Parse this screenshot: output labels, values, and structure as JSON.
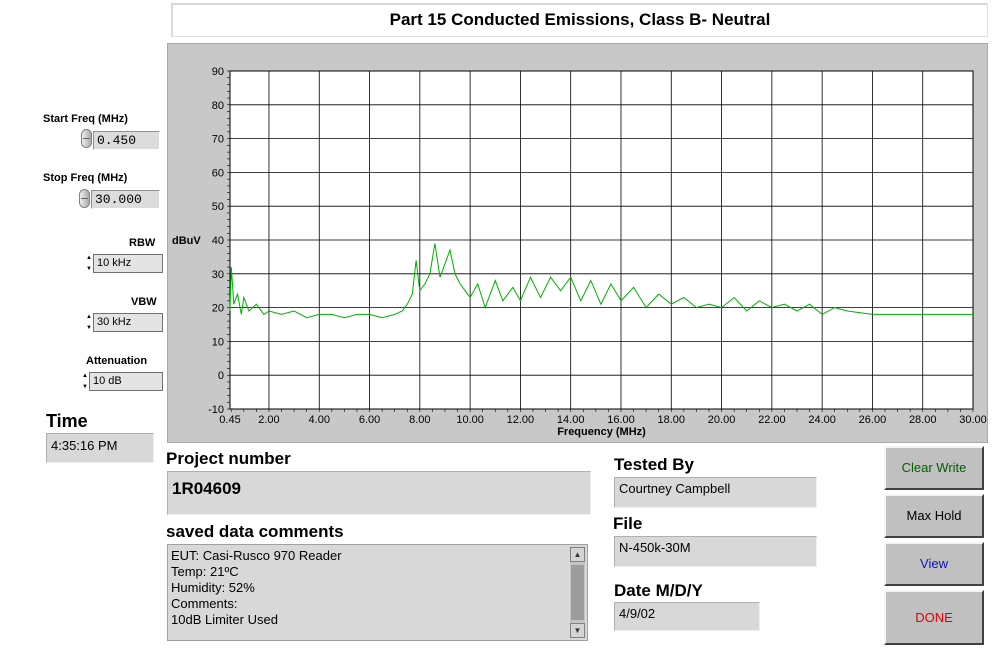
{
  "title": "Part 15 Conducted Emissions, Class B- Neutral",
  "controls": {
    "start_freq_label": "Start Freq (MHz)",
    "start_freq_value": "0.450",
    "stop_freq_label": "Stop Freq (MHz)",
    "stop_freq_value": "30.000",
    "rbw_label": "RBW",
    "rbw_value": "10 kHz",
    "vbw_label": "VBW",
    "vbw_value": "30 kHz",
    "attenuation_label": "Attenuation",
    "attenuation_value": "10 dB",
    "time_label": "Time",
    "time_value": "4:35:16 PM"
  },
  "project": {
    "label": "Project number",
    "value": "1R04609"
  },
  "comments": {
    "label": "saved data comments",
    "text": "EUT: Casi-Rusco 970 Reader\nTemp: 21ºC\nHumidity: 52%\nComments:\n10dB Limiter Used"
  },
  "tested_by": {
    "label": "Tested By",
    "value": "Courtney Campbell"
  },
  "file": {
    "label": "File",
    "value": "N-450k-30M"
  },
  "date": {
    "label": "Date M/D/Y",
    "value": "4/9/02"
  },
  "buttons": {
    "clear_write": "Clear Write",
    "max_hold": "Max Hold",
    "view": "View",
    "done": "DONE"
  },
  "colors": {
    "trace": "#00b000",
    "clear_write": "#006000",
    "view": "#1010c0",
    "done": "#e00000"
  },
  "chart_data": {
    "type": "line",
    "title": "",
    "xlabel": "Frequency (MHz)",
    "ylabel": "dBuV",
    "xlim": [
      0.45,
      30.0
    ],
    "ylim": [
      -10,
      90
    ],
    "x_ticks": [
      "0.45",
      "2.00",
      "4.00",
      "6.00",
      "8.00",
      "10.00",
      "12.00",
      "14.00",
      "16.00",
      "18.00",
      "20.00",
      "22.00",
      "24.00",
      "26.00",
      "28.00",
      "30.00"
    ],
    "x_tick_values": [
      0.45,
      2,
      4,
      6,
      8,
      10,
      12,
      14,
      16,
      18,
      20,
      22,
      24,
      26,
      28,
      30
    ],
    "y_ticks": [
      "90",
      "80",
      "70",
      "60",
      "50",
      "40",
      "30",
      "20",
      "10",
      "0",
      "-10"
    ],
    "y_tick_values": [
      90,
      80,
      70,
      60,
      50,
      40,
      30,
      20,
      10,
      0,
      -10
    ],
    "grid": true,
    "series": [
      {
        "color": "#00b000",
        "x": [
          0.45,
          0.5,
          0.6,
          0.75,
          0.9,
          1.0,
          1.2,
          1.5,
          1.8,
          2.0,
          2.5,
          3.0,
          3.5,
          4.0,
          4.5,
          5.0,
          5.5,
          6.0,
          6.5,
          7.0,
          7.3,
          7.5,
          7.7,
          7.85,
          8.0,
          8.2,
          8.4,
          8.6,
          8.8,
          9.0,
          9.2,
          9.4,
          9.6,
          9.8,
          10.0,
          10.3,
          10.6,
          11.0,
          11.3,
          11.7,
          12.0,
          12.4,
          12.8,
          13.2,
          13.6,
          14.0,
          14.4,
          14.8,
          15.2,
          15.6,
          16.0,
          16.5,
          17.0,
          17.5,
          18.0,
          18.5,
          19.0,
          19.5,
          20.0,
          20.5,
          21.0,
          21.5,
          22.0,
          22.5,
          23.0,
          23.5,
          24.0,
          24.5,
          25.0,
          26.0,
          27.0,
          28.0,
          29.0,
          30.0
        ],
        "y": [
          19,
          32,
          21,
          24,
          18,
          23,
          19,
          21,
          18,
          19,
          18,
          19,
          17,
          18,
          18,
          17,
          18,
          18,
          17,
          18,
          19,
          21,
          24,
          34,
          25,
          27,
          30,
          39,
          29,
          33,
          37,
          30,
          27,
          25,
          23,
          27,
          20,
          28,
          22,
          26,
          22,
          29,
          23,
          29,
          25,
          29,
          22,
          28,
          21,
          27,
          22,
          26,
          20,
          24,
          21,
          23,
          20,
          21,
          20,
          23,
          19,
          22,
          20,
          21,
          19,
          21,
          18,
          20,
          19,
          18,
          18,
          18,
          18,
          18
        ]
      }
    ]
  }
}
